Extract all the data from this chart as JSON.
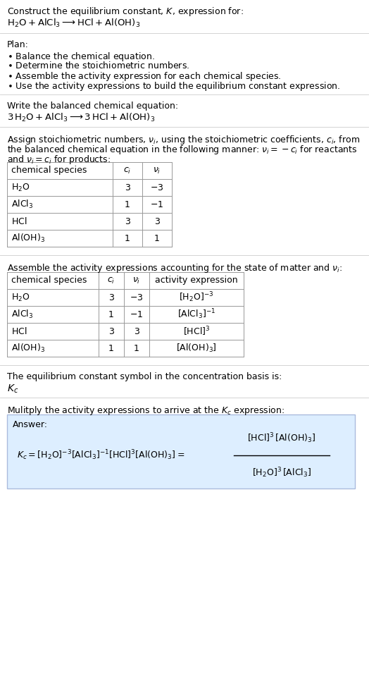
{
  "title_line1": "Construct the equilibrium constant, $K$, expression for:",
  "title_line2": "$\\mathrm{H_2O + AlCl_3 \\longrightarrow HCl + Al(OH)_3}$",
  "plan_header": "Plan:",
  "plan_items": [
    "$\\bullet$ Balance the chemical equation.",
    "$\\bullet$ Determine the stoichiometric numbers.",
    "$\\bullet$ Assemble the activity expression for each chemical species.",
    "$\\bullet$ Use the activity expressions to build the equilibrium constant expression."
  ],
  "balanced_header": "Write the balanced chemical equation:",
  "balanced_eq": "$\\mathrm{3\\,H_2O + AlCl_3 \\longrightarrow 3\\,HCl + Al(OH)_3}$",
  "stoich_header_line1": "Assign stoichiometric numbers, $\\nu_i$, using the stoichiometric coefficients, $c_i$, from",
  "stoich_header_line2": "the balanced chemical equation in the following manner: $\\nu_i = -c_i$ for reactants",
  "stoich_header_line3": "and $\\nu_i = c_i$ for products:",
  "table1_headers": [
    "chemical species",
    "$c_i$",
    "$\\nu_i$"
  ],
  "table1_rows": [
    [
      "$\\mathrm{H_2O}$",
      "3",
      "$-3$"
    ],
    [
      "$\\mathrm{AlCl_3}$",
      "1",
      "$-1$"
    ],
    [
      "$\\mathrm{HCl}$",
      "3",
      "3"
    ],
    [
      "$\\mathrm{Al(OH)_3}$",
      "1",
      "1"
    ]
  ],
  "activity_header": "Assemble the activity expressions accounting for the state of matter and $\\nu_i$:",
  "table2_headers": [
    "chemical species",
    "$c_i$",
    "$\\nu_i$",
    "activity expression"
  ],
  "table2_rows": [
    [
      "$\\mathrm{H_2O}$",
      "3",
      "$-3$",
      "$[\\mathrm{H_2O}]^{-3}$"
    ],
    [
      "$\\mathrm{AlCl_3}$",
      "1",
      "$-1$",
      "$[\\mathrm{AlCl_3}]^{-1}$"
    ],
    [
      "$\\mathrm{HCl}$",
      "3",
      "3",
      "$[\\mathrm{HCl}]^3$"
    ],
    [
      "$\\mathrm{Al(OH)_3}$",
      "1",
      "1",
      "$[\\mathrm{Al(OH)_3}]$"
    ]
  ],
  "kc_header": "The equilibrium constant symbol in the concentration basis is:",
  "kc_symbol": "$K_c$",
  "multiply_header": "Mulitply the activity expressions to arrive at the $K_c$ expression:",
  "answer_label": "Answer:",
  "kc_expr_left": "$K_c = [\\mathrm{H_2O}]^{-3}[\\mathrm{AlCl_3}]^{-1}[\\mathrm{HCl}]^3[\\mathrm{Al(OH)_3}] = $",
  "kc_frac_num": "$[\\mathrm{HCl}]^3\\,[\\mathrm{Al(OH)_3}]$",
  "kc_frac_den": "$[\\mathrm{H_2O}]^3\\,[\\mathrm{AlCl_3}]$",
  "bg_color": "#ffffff",
  "answer_box_color": "#ddeeff",
  "answer_box_edge": "#aabbdd",
  "table_line_color": "#999999",
  "sep_color": "#cccccc",
  "text_color": "#000000",
  "font_size": 9.0
}
